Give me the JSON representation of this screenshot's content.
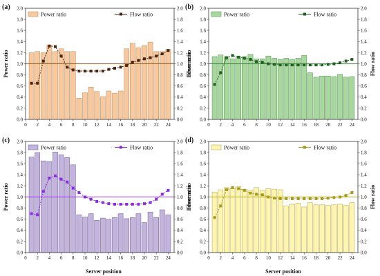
{
  "figure": {
    "x_label": "Server position",
    "colors": {
      "axis": "#333333",
      "ref_line": "#8a4b08"
    }
  },
  "chart_data": [
    {
      "type": "bar",
      "panel_label": "(a)",
      "bar_name": "Power ratio",
      "line_name": "Flow ratio",
      "ylabel_left": "Power ratio",
      "ylabel_right": "Flow ratio",
      "bar_color": "#f6c9a0",
      "bar_edge": "#c9925d",
      "line_color": "#4a2412",
      "ref_color": "#8a4b08",
      "reference": 1.0,
      "x": [
        1,
        2,
        3,
        4,
        5,
        6,
        7,
        8,
        9,
        10,
        11,
        12,
        13,
        14,
        15,
        16,
        17,
        18,
        19,
        20,
        21,
        22,
        23,
        24
      ],
      "bars": [
        1.2,
        1.22,
        1.2,
        1.34,
        1.22,
        1.27,
        1.22,
        1.22,
        0.38,
        0.48,
        0.58,
        0.5,
        0.41,
        0.51,
        0.47,
        0.51,
        1.27,
        1.37,
        1.29,
        1.33,
        1.39,
        1.22,
        1.22,
        1.26
      ],
      "line": [
        0.65,
        0.65,
        1.05,
        1.32,
        1.31,
        1.14,
        0.94,
        0.89,
        0.87,
        0.87,
        0.87,
        0.87,
        0.87,
        0.9,
        0.92,
        0.94,
        0.97,
        1.03,
        1.06,
        1.09,
        1.11,
        1.14,
        1.18,
        1.24
      ],
      "xlim": [
        0,
        25
      ],
      "ylim": [
        0,
        2.0
      ],
      "xticks": [
        0,
        2,
        4,
        6,
        8,
        10,
        12,
        14,
        16,
        18,
        20,
        22,
        24
      ],
      "yticks": [
        "0.0",
        "0.2",
        "0.4",
        "0.6",
        "0.8",
        "1.0",
        "1.2",
        "1.4",
        "1.6",
        "1.8",
        "2.0"
      ]
    },
    {
      "type": "bar",
      "panel_label": "(b)",
      "bar_name": "Power ratio",
      "line_name": "Flow ratio",
      "ylabel_left": "Power ratio",
      "ylabel_right": "Flow ratio",
      "bar_color": "#a8d8a0",
      "bar_edge": "#5f9a58",
      "line_color": "#1f5f1f",
      "ref_color": "#2e7d2e",
      "reference": 1.0,
      "x": [
        1,
        2,
        3,
        4,
        5,
        6,
        7,
        8,
        9,
        10,
        11,
        12,
        13,
        14,
        15,
        16,
        17,
        18,
        19,
        20,
        21,
        22,
        23,
        24
      ],
      "bars": [
        1.13,
        1.16,
        1.13,
        1.09,
        1.13,
        1.13,
        1.17,
        1.09,
        1.09,
        1.14,
        1.1,
        1.08,
        1.1,
        1.08,
        1.1,
        1.15,
        0.84,
        0.76,
        0.78,
        0.78,
        0.77,
        0.81,
        0.76,
        0.77
      ],
      "line": [
        0.63,
        0.84,
        1.11,
        1.15,
        1.12,
        1.1,
        1.08,
        1.04,
        1.03,
        1.0,
        0.99,
        0.98,
        0.98,
        0.98,
        0.98,
        0.98,
        0.98,
        0.98,
        0.98,
        0.99,
        1.0,
        1.02,
        1.05,
        1.08
      ],
      "xlim": [
        0,
        25
      ],
      "ylim": [
        0,
        2.0
      ],
      "xticks": [
        0,
        2,
        4,
        6,
        8,
        10,
        12,
        14,
        16,
        18,
        20,
        22,
        24
      ],
      "yticks": [
        "0.0",
        "0.2",
        "0.4",
        "0.6",
        "0.8",
        "1.0",
        "1.2",
        "1.4",
        "1.6",
        "1.8",
        "2.0"
      ]
    },
    {
      "type": "bar",
      "panel_label": "(c)",
      "bar_name": "Power ratio",
      "line_name": "Flow ratio",
      "ylabel_left": "Power ratio",
      "ylabel_right": "Flow ratio",
      "bar_color": "#c3b4dc",
      "bar_edge": "#7d6aa8",
      "line_color": "#8a2be2",
      "ref_color": "#9b30ff",
      "reference": 1.0,
      "x": [
        1,
        2,
        3,
        4,
        5,
        6,
        7,
        8,
        9,
        10,
        11,
        12,
        13,
        14,
        15,
        16,
        17,
        18,
        19,
        20,
        21,
        22,
        23,
        24
      ],
      "bars": [
        1.72,
        1.8,
        1.65,
        1.64,
        1.81,
        1.76,
        1.71,
        1.58,
        0.68,
        0.64,
        0.7,
        0.58,
        0.62,
        0.6,
        0.63,
        0.7,
        0.61,
        0.63,
        0.7,
        0.54,
        0.73,
        0.63,
        0.77,
        0.68
      ],
      "line": [
        0.7,
        0.68,
        1.1,
        1.34,
        1.38,
        1.32,
        1.27,
        1.16,
        1.08,
        1.0,
        0.96,
        0.92,
        0.9,
        0.88,
        0.87,
        0.87,
        0.87,
        0.87,
        0.87,
        0.88,
        0.9,
        0.96,
        1.05,
        1.12
      ],
      "xlim": [
        0,
        25
      ],
      "ylim": [
        0,
        2.0
      ],
      "xticks": [
        0,
        2,
        4,
        6,
        8,
        10,
        12,
        14,
        16,
        18,
        20,
        22,
        24
      ],
      "yticks": [
        "0.0",
        "0.2",
        "0.4",
        "0.6",
        "0.8",
        "1.0",
        "1.2",
        "1.4",
        "1.6",
        "1.8",
        "2.0"
      ]
    },
    {
      "type": "bar",
      "panel_label": "(d)",
      "bar_name": "Power ratio",
      "line_name": "Flow ratio",
      "ylabel_left": "Power ratio",
      "ylabel_right": "Flow ratio",
      "bar_color": "#fdf5b0",
      "bar_edge": "#bdb060",
      "line_color": "#a89a1a",
      "ref_color": "#b8a81c",
      "reference": 1.0,
      "x": [
        1,
        2,
        3,
        4,
        5,
        6,
        7,
        8,
        9,
        10,
        11,
        12,
        13,
        14,
        15,
        16,
        17,
        18,
        19,
        20,
        21,
        22,
        23,
        24
      ],
      "bars": [
        1.09,
        1.13,
        1.17,
        1.15,
        1.19,
        1.14,
        1.12,
        1.17,
        1.12,
        1.15,
        1.14,
        1.13,
        0.84,
        0.87,
        0.89,
        0.82,
        0.9,
        0.86,
        0.86,
        0.85,
        0.86,
        0.87,
        0.85,
        0.9
      ],
      "line": [
        0.63,
        0.84,
        1.13,
        1.17,
        1.15,
        1.12,
        1.07,
        1.05,
        1.04,
        1.0,
        0.98,
        0.97,
        0.97,
        0.97,
        0.97,
        0.97,
        0.97,
        0.97,
        0.97,
        0.98,
        0.99,
        1.0,
        1.03,
        1.08
      ],
      "xlim": [
        0,
        25
      ],
      "ylim": [
        0,
        2.0
      ],
      "xticks": [
        0,
        2,
        4,
        6,
        8,
        10,
        12,
        14,
        16,
        18,
        20,
        22,
        24
      ],
      "yticks": [
        "0.0",
        "0.2",
        "0.4",
        "0.6",
        "0.8",
        "1.0",
        "1.2",
        "1.4",
        "1.6",
        "1.8",
        "2.0"
      ]
    }
  ]
}
